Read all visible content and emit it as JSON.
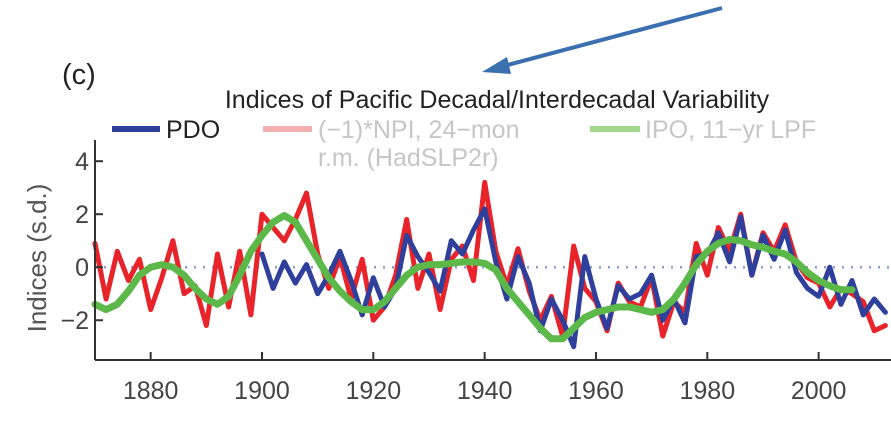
{
  "chart_data": {
    "type": "line",
    "panel_label": "(c)",
    "title": "Indices of Pacific Decadal/Interdecadal Variability",
    "xlabel": "",
    "ylabel": "Indices (s.d.)",
    "xlim": [
      1870,
      2013
    ],
    "ylim": [
      -3.5,
      4.8
    ],
    "x_ticks": [
      1880,
      1900,
      1920,
      1940,
      1960,
      1980,
      2000
    ],
    "y_ticks": [
      -2,
      0,
      2,
      4
    ],
    "y_tick_labels": [
      "−2",
      "0",
      "2",
      "4"
    ],
    "zero_line": true,
    "grid": false,
    "legend_position": "top",
    "annotation": "arrow pointing to title",
    "series": [
      {
        "name": "(−1)*NPI, 24−mon r.m. (HadSLP2r)",
        "legend_label_line1": "(−1)*NPI, 24−mon",
        "legend_label_line2": "r.m. (HadSLP2r)",
        "color": "#e8232a",
        "x": [
          1870,
          1872,
          1874,
          1876,
          1878,
          1880,
          1882,
          1884,
          1886,
          1888,
          1890,
          1892,
          1894,
          1896,
          1898,
          1900,
          1902,
          1904,
          1906,
          1908,
          1910,
          1912,
          1914,
          1916,
          1918,
          1920,
          1922,
          1924,
          1926,
          1928,
          1930,
          1932,
          1934,
          1936,
          1938,
          1940,
          1942,
          1944,
          1946,
          1948,
          1950,
          1952,
          1954,
          1956,
          1958,
          1960,
          1962,
          1964,
          1966,
          1968,
          1970,
          1972,
          1974,
          1976,
          1978,
          1980,
          1982,
          1984,
          1986,
          1988,
          1990,
          1992,
          1994,
          1996,
          1998,
          2000,
          2002,
          2004,
          2006,
          2008,
          2010,
          2012
        ],
        "values": [
          0.9,
          -1.2,
          0.6,
          -0.5,
          0.3,
          -1.6,
          -0.4,
          1.0,
          -1.0,
          -0.7,
          -2.2,
          0.5,
          -1.5,
          0.6,
          -1.8,
          2.0,
          1.5,
          1.0,
          1.8,
          2.8,
          0.5,
          -0.8,
          0.4,
          -1.2,
          0.3,
          -2.0,
          -1.5,
          -0.3,
          1.8,
          -0.8,
          0.5,
          -1.6,
          0.3,
          0.8,
          -0.5,
          3.2,
          0.6,
          -0.7,
          0.7,
          -0.9,
          -2.0,
          -1.1,
          -2.6,
          0.8,
          -0.8,
          -1.3,
          -2.4,
          -0.6,
          -1.3,
          -1.5,
          -0.4,
          -2.6,
          -1.3,
          -1.7,
          0.9,
          -0.3,
          1.5,
          0.6,
          2.0,
          -0.3,
          1.3,
          0.6,
          1.6,
          0.2,
          -0.4,
          -0.6,
          -1.5,
          -0.8,
          -1.0,
          -1.3,
          -2.4,
          -2.2
        ]
      },
      {
        "name": "PDO",
        "legend_label": "PDO",
        "color": "#2e3f9c",
        "x": [
          1900,
          1902,
          1904,
          1906,
          1908,
          1910,
          1912,
          1914,
          1916,
          1918,
          1920,
          1922,
          1924,
          1926,
          1928,
          1930,
          1932,
          1934,
          1936,
          1938,
          1940,
          1942,
          1944,
          1946,
          1948,
          1950,
          1952,
          1954,
          1956,
          1958,
          1960,
          1962,
          1964,
          1966,
          1968,
          1970,
          1972,
          1974,
          1976,
          1978,
          1980,
          1982,
          1984,
          1986,
          1988,
          1990,
          1992,
          1994,
          1996,
          1998,
          2000,
          2002,
          2004,
          2006,
          2008,
          2010,
          2012
        ],
        "values": [
          0.5,
          -0.8,
          0.2,
          -0.6,
          0.1,
          -1.0,
          -0.3,
          0.6,
          -0.5,
          -1.8,
          -0.4,
          -1.5,
          -0.8,
          1.2,
          0.4,
          -0.2,
          -0.9,
          1.0,
          0.5,
          1.4,
          2.2,
          0.2,
          -1.2,
          0.4,
          -0.6,
          -2.4,
          -1.2,
          -2.0,
          -3.0,
          0.4,
          -1.2,
          -2.3,
          -0.7,
          -1.2,
          -1.0,
          -0.3,
          -2.0,
          -1.2,
          -2.1,
          0.4,
          0.5,
          1.3,
          0.2,
          1.9,
          -0.3,
          1.2,
          0.3,
          1.4,
          -0.2,
          -0.8,
          -1.1,
          0.0,
          -1.4,
          -0.5,
          -1.8,
          -1.2,
          -1.7
        ]
      },
      {
        "name": "IPO, 11−yr LPF",
        "legend_label": "IPO, 11−yr LPF",
        "color": "#5cb848",
        "x": [
          1870,
          1872,
          1874,
          1876,
          1878,
          1880,
          1882,
          1884,
          1886,
          1888,
          1890,
          1892,
          1894,
          1896,
          1898,
          1900,
          1902,
          1904,
          1906,
          1908,
          1910,
          1912,
          1914,
          1916,
          1918,
          1920,
          1922,
          1924,
          1926,
          1928,
          1930,
          1932,
          1934,
          1936,
          1938,
          1940,
          1942,
          1944,
          1946,
          1948,
          1950,
          1952,
          1954,
          1956,
          1958,
          1960,
          1962,
          1964,
          1966,
          1968,
          1970,
          1972,
          1974,
          1976,
          1978,
          1980,
          1982,
          1984,
          1986,
          1988,
          1990,
          1992,
          1994,
          1996,
          1998,
          2000,
          2002,
          2004,
          2006
        ],
        "values": [
          -1.4,
          -1.6,
          -1.4,
          -0.9,
          -0.3,
          0.0,
          0.1,
          0.0,
          -0.3,
          -0.8,
          -1.2,
          -1.4,
          -1.1,
          -0.3,
          0.6,
          1.2,
          1.7,
          1.95,
          1.7,
          1.0,
          0.3,
          -0.4,
          -0.9,
          -1.3,
          -1.6,
          -1.6,
          -1.3,
          -0.8,
          -0.3,
          0.0,
          0.1,
          0.1,
          0.15,
          0.2,
          0.2,
          0.15,
          -0.1,
          -0.8,
          -1.3,
          -1.8,
          -2.3,
          -2.7,
          -2.7,
          -2.3,
          -1.9,
          -1.7,
          -1.6,
          -1.5,
          -1.5,
          -1.6,
          -1.7,
          -1.6,
          -1.2,
          -0.6,
          0.1,
          0.6,
          0.9,
          1.05,
          1.0,
          0.85,
          0.75,
          0.6,
          0.5,
          0.2,
          -0.2,
          -0.5,
          -0.7,
          -0.85,
          -0.85
        ]
      }
    ]
  }
}
